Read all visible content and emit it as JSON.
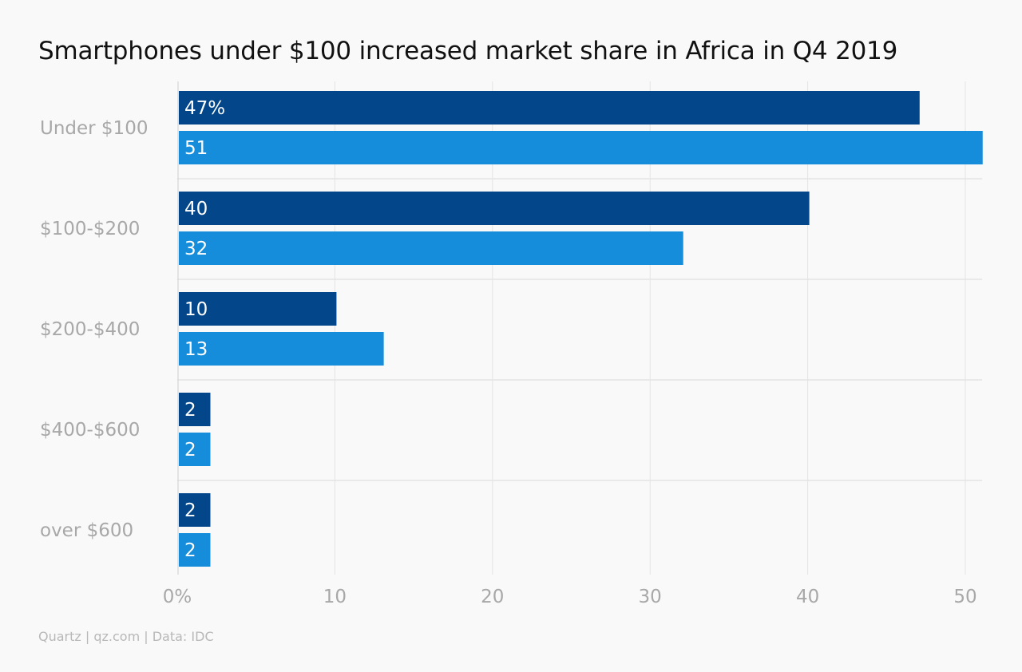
{
  "chart_data": {
    "type": "bar",
    "orientation": "horizontal",
    "title": "Smartphones under $100 increased market share in Africa in Q4 2019",
    "categories": [
      "Under $100",
      "$100-$200",
      "$200-$400",
      "$400-$600",
      "over $600"
    ],
    "series": [
      {
        "values": [
          47,
          40,
          10,
          2,
          2
        ],
        "color": "#03468a",
        "labels": [
          "47%",
          "40",
          "10",
          "2",
          "2"
        ]
      },
      {
        "values": [
          51,
          32,
          13,
          2,
          2
        ],
        "color": "#168ddb",
        "labels": [
          "51",
          "32",
          "13",
          "2",
          "2"
        ]
      }
    ],
    "xlim": [
      0,
      51
    ],
    "x_ticks": [
      0,
      10,
      20,
      30,
      40,
      50
    ],
    "x_tick_labels": [
      "0%",
      "10",
      "20",
      "30",
      "40",
      "50"
    ],
    "grid": true,
    "legend": false
  },
  "footer": "Quartz | qz.com | Data: IDC",
  "colors": {
    "background": "#f9f9f9",
    "grid": "#e4e4e4",
    "category_label": "#a8a8a8",
    "tick_label": "#a8a8a8",
    "bar_label": "#ffffff",
    "title": "#111111"
  }
}
